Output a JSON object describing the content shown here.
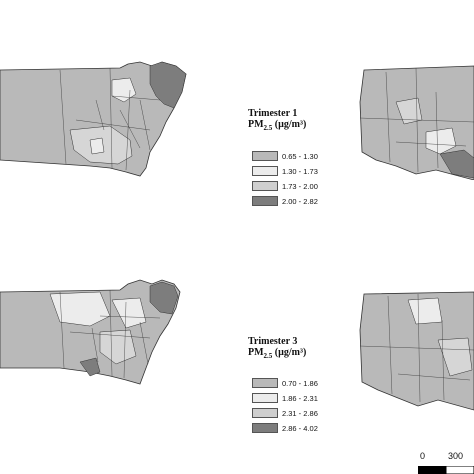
{
  "legends": [
    {
      "trimester": "Trimester 1",
      "pm_label": "PM",
      "pm_sub": "2.5",
      "pm_unit": " (µg/m³)",
      "classes": [
        {
          "range": "0.65 - 1.30",
          "color": "#b9b9b9"
        },
        {
          "range": "1.30 - 1.73",
          "color": "#ececec"
        },
        {
          "range": "1.73 - 2.00",
          "color": "#cfcfcf"
        },
        {
          "range": "2.00 - 2.82",
          "color": "#7d7d7d"
        }
      ]
    },
    {
      "trimester": "Trimester 3",
      "pm_label": "PM",
      "pm_sub": "2.5",
      "pm_unit": " (µg/m³)",
      "classes": [
        {
          "range": "0.70 - 1.86",
          "color": "#b9b9b9"
        },
        {
          "range": "1.86 - 2.31",
          "color": "#ececec"
        },
        {
          "range": "2.31 - 2.86",
          "color": "#cfcfcf"
        },
        {
          "range": "2.86 - 4.02",
          "color": "#7d7d7d"
        }
      ]
    }
  ],
  "scale": {
    "zero": "0",
    "mid": "300"
  }
}
